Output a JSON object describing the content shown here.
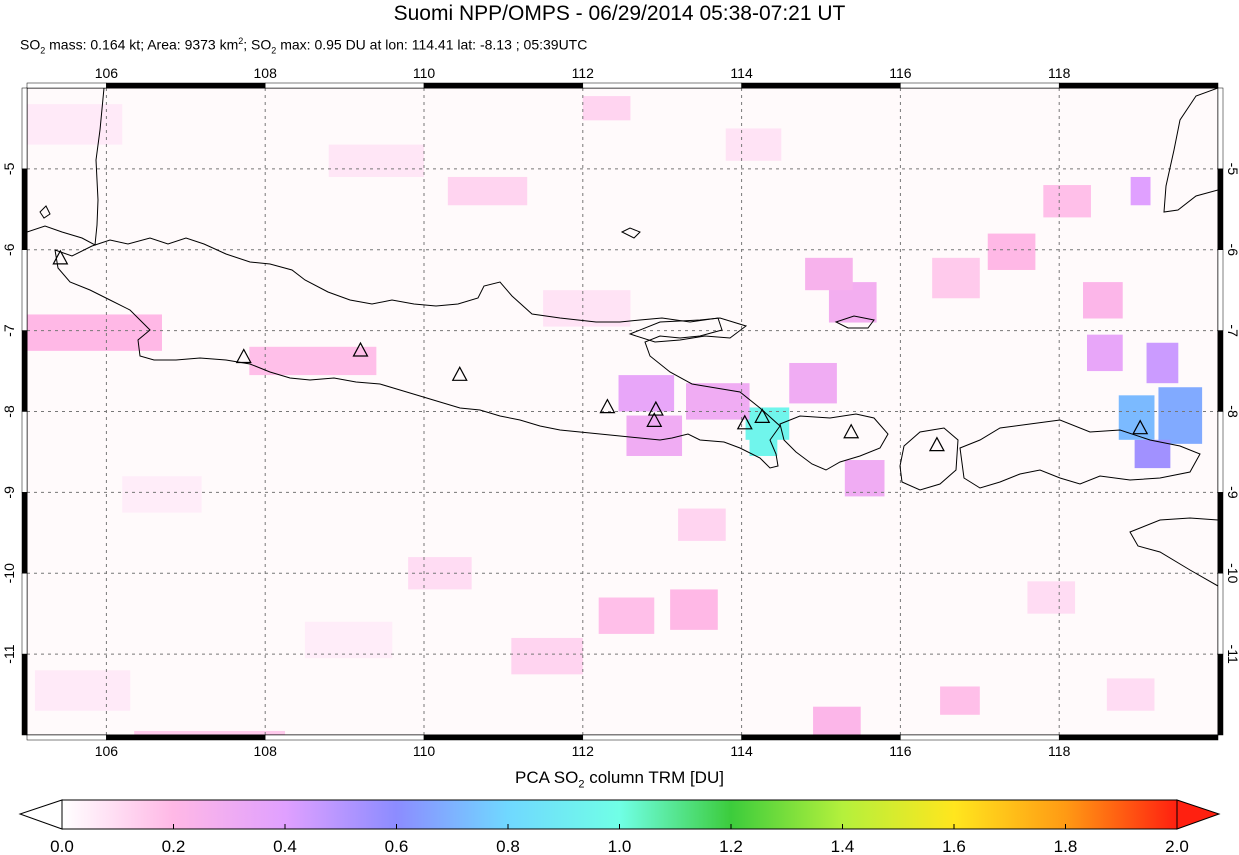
{
  "header": {
    "title": "Suomi NPP/OMPS - 06/29/2014 05:38-07:21 UT",
    "so2_mass": "0.164 kt",
    "area": "9373 km",
    "so2_max": "0.95 DU at lon: 114.41 lat: -8.13 ; 05:39UTC"
  },
  "map": {
    "lon_range": [
      105,
      120
    ],
    "lat_range": [
      -12,
      -4
    ],
    "lon_ticks": [
      106,
      108,
      110,
      112,
      114,
      116,
      118
    ],
    "lat_ticks": [
      -5,
      -6,
      -7,
      -8,
      -9,
      -10,
      -11
    ],
    "lon_tick_labels": [
      "106",
      "108",
      "110",
      "112",
      "114",
      "116",
      "118"
    ],
    "lat_tick_labels": [
      "-5",
      "-6",
      "-7",
      "-8",
      "-9",
      "-10",
      "-11"
    ],
    "grid": "dashed",
    "volcanoes": [
      {
        "lon": 105.42,
        "lat": -6.1
      },
      {
        "lon": 107.73,
        "lat": -7.32
      },
      {
        "lon": 109.2,
        "lat": -7.24
      },
      {
        "lon": 110.45,
        "lat": -7.54
      },
      {
        "lon": 112.31,
        "lat": -7.94
      },
      {
        "lon": 112.92,
        "lat": -7.97
      },
      {
        "lon": 112.9,
        "lat": -8.11
      },
      {
        "lon": 114.04,
        "lat": -8.14
      },
      {
        "lon": 114.26,
        "lat": -8.06
      },
      {
        "lon": 115.38,
        "lat": -8.25
      },
      {
        "lon": 116.46,
        "lat": -8.41
      },
      {
        "lon": 119.02,
        "lat": -8.2
      }
    ],
    "so2_pixels": [
      {
        "lon": 114.05,
        "lat": -7.95,
        "w": 0.55,
        "h": 0.4,
        "du": 0.95
      },
      {
        "lon": 114.1,
        "lat": -8.3,
        "w": 0.35,
        "h": 0.25,
        "du": 0.95
      },
      {
        "lon": 118.75,
        "lat": -7.8,
        "w": 0.45,
        "h": 0.55,
        "du": 0.72
      },
      {
        "lon": 119.25,
        "lat": -7.7,
        "w": 0.55,
        "h": 0.7,
        "du": 0.68
      },
      {
        "lon": 118.95,
        "lat": -8.35,
        "w": 0.45,
        "h": 0.35,
        "du": 0.55
      },
      {
        "lon": 119.1,
        "lat": -7.15,
        "w": 0.4,
        "h": 0.5,
        "du": 0.45
      },
      {
        "lon": 118.35,
        "lat": -7.05,
        "w": 0.45,
        "h": 0.45,
        "du": 0.35
      },
      {
        "lon": 118.9,
        "lat": -5.1,
        "w": 0.25,
        "h": 0.35,
        "du": 0.4
      },
      {
        "lon": 112.45,
        "lat": -7.55,
        "w": 0.7,
        "h": 0.45,
        "du": 0.35
      },
      {
        "lon": 112.55,
        "lat": -8.05,
        "w": 0.7,
        "h": 0.5,
        "du": 0.3
      },
      {
        "lon": 113.3,
        "lat": -7.65,
        "w": 0.8,
        "h": 0.45,
        "du": 0.3
      },
      {
        "lon": 114.6,
        "lat": -7.4,
        "w": 0.6,
        "h": 0.5,
        "du": 0.3
      },
      {
        "lon": 115.3,
        "lat": -8.6,
        "w": 0.5,
        "h": 0.45,
        "du": 0.3
      },
      {
        "lon": 115.1,
        "lat": -6.4,
        "w": 0.6,
        "h": 0.5,
        "du": 0.28
      },
      {
        "lon": 114.8,
        "lat": -6.1,
        "w": 0.6,
        "h": 0.4,
        "du": 0.25
      },
      {
        "lon": 105.0,
        "lat": -6.8,
        "w": 1.7,
        "h": 0.45,
        "du": 0.2
      },
      {
        "lon": 107.8,
        "lat": -7.2,
        "w": 1.6,
        "h": 0.35,
        "du": 0.18
      },
      {
        "lon": 112.2,
        "lat": -10.3,
        "w": 0.7,
        "h": 0.45,
        "du": 0.18
      },
      {
        "lon": 113.1,
        "lat": -10.2,
        "w": 0.6,
        "h": 0.5,
        "du": 0.2
      },
      {
        "lon": 114.9,
        "lat": -11.65,
        "w": 0.6,
        "h": 0.4,
        "du": 0.22
      },
      {
        "lon": 116.5,
        "lat": -11.4,
        "w": 0.5,
        "h": 0.35,
        "du": 0.18
      },
      {
        "lon": 117.1,
        "lat": -5.8,
        "w": 0.6,
        "h": 0.45,
        "du": 0.2
      },
      {
        "lon": 116.4,
        "lat": -6.1,
        "w": 0.6,
        "h": 0.5,
        "du": 0.15
      },
      {
        "lon": 117.8,
        "lat": -5.2,
        "w": 0.6,
        "h": 0.4,
        "du": 0.18
      },
      {
        "lon": 118.3,
        "lat": -6.4,
        "w": 0.5,
        "h": 0.45,
        "du": 0.22
      },
      {
        "lon": 106.35,
        "lat": -11.95,
        "w": 1.9,
        "h": 0.35,
        "du": 0.15
      },
      {
        "lon": 110.3,
        "lat": -5.1,
        "w": 1.0,
        "h": 0.35,
        "du": 0.12
      },
      {
        "lon": 111.1,
        "lat": -10.8,
        "w": 0.9,
        "h": 0.45,
        "du": 0.12
      },
      {
        "lon": 109.8,
        "lat": -9.8,
        "w": 0.8,
        "h": 0.4,
        "du": 0.1
      },
      {
        "lon": 113.2,
        "lat": -9.2,
        "w": 0.6,
        "h": 0.4,
        "du": 0.12
      },
      {
        "lon": 117.6,
        "lat": -10.1,
        "w": 0.6,
        "h": 0.4,
        "du": 0.1
      },
      {
        "lon": 118.6,
        "lat": -11.3,
        "w": 0.6,
        "h": 0.4,
        "du": 0.1
      },
      {
        "lon": 105.0,
        "lat": -4.2,
        "w": 1.2,
        "h": 0.5,
        "du": 0.06
      },
      {
        "lon": 108.8,
        "lat": -4.7,
        "w": 1.2,
        "h": 0.4,
        "du": 0.07
      },
      {
        "lon": 111.5,
        "lat": -6.5,
        "w": 1.1,
        "h": 0.45,
        "du": 0.08
      },
      {
        "lon": 106.2,
        "lat": -8.8,
        "w": 1.0,
        "h": 0.45,
        "du": 0.05
      },
      {
        "lon": 113.8,
        "lat": -4.5,
        "w": 0.7,
        "h": 0.4,
        "du": 0.08
      },
      {
        "lon": 112.0,
        "lat": -4.1,
        "w": 0.6,
        "h": 0.3,
        "du": 0.12
      },
      {
        "lon": 105.1,
        "lat": -11.2,
        "w": 1.2,
        "h": 0.5,
        "du": 0.06
      },
      {
        "lon": 108.5,
        "lat": -10.6,
        "w": 1.1,
        "h": 0.45,
        "du": 0.05
      }
    ]
  },
  "colorbar": {
    "title": "PCA SO",
    "title_sub": "2",
    "title_tail": " column TRM [DU]",
    "range": [
      0.0,
      2.0
    ],
    "stops": [
      "#ffffff",
      "#ffb8e6",
      "#e0a0ff",
      "#8c8cff",
      "#70d8ff",
      "#70ffe6",
      "#3ccc3c",
      "#b4f03c",
      "#ffe61e",
      "#ff9a14",
      "#ff2010"
    ],
    "tick_labels": [
      "0.0",
      "0.2",
      "0.4",
      "0.6",
      "0.8",
      "1.0",
      "1.2",
      "1.4",
      "1.6",
      "1.8",
      "2.0"
    ]
  }
}
